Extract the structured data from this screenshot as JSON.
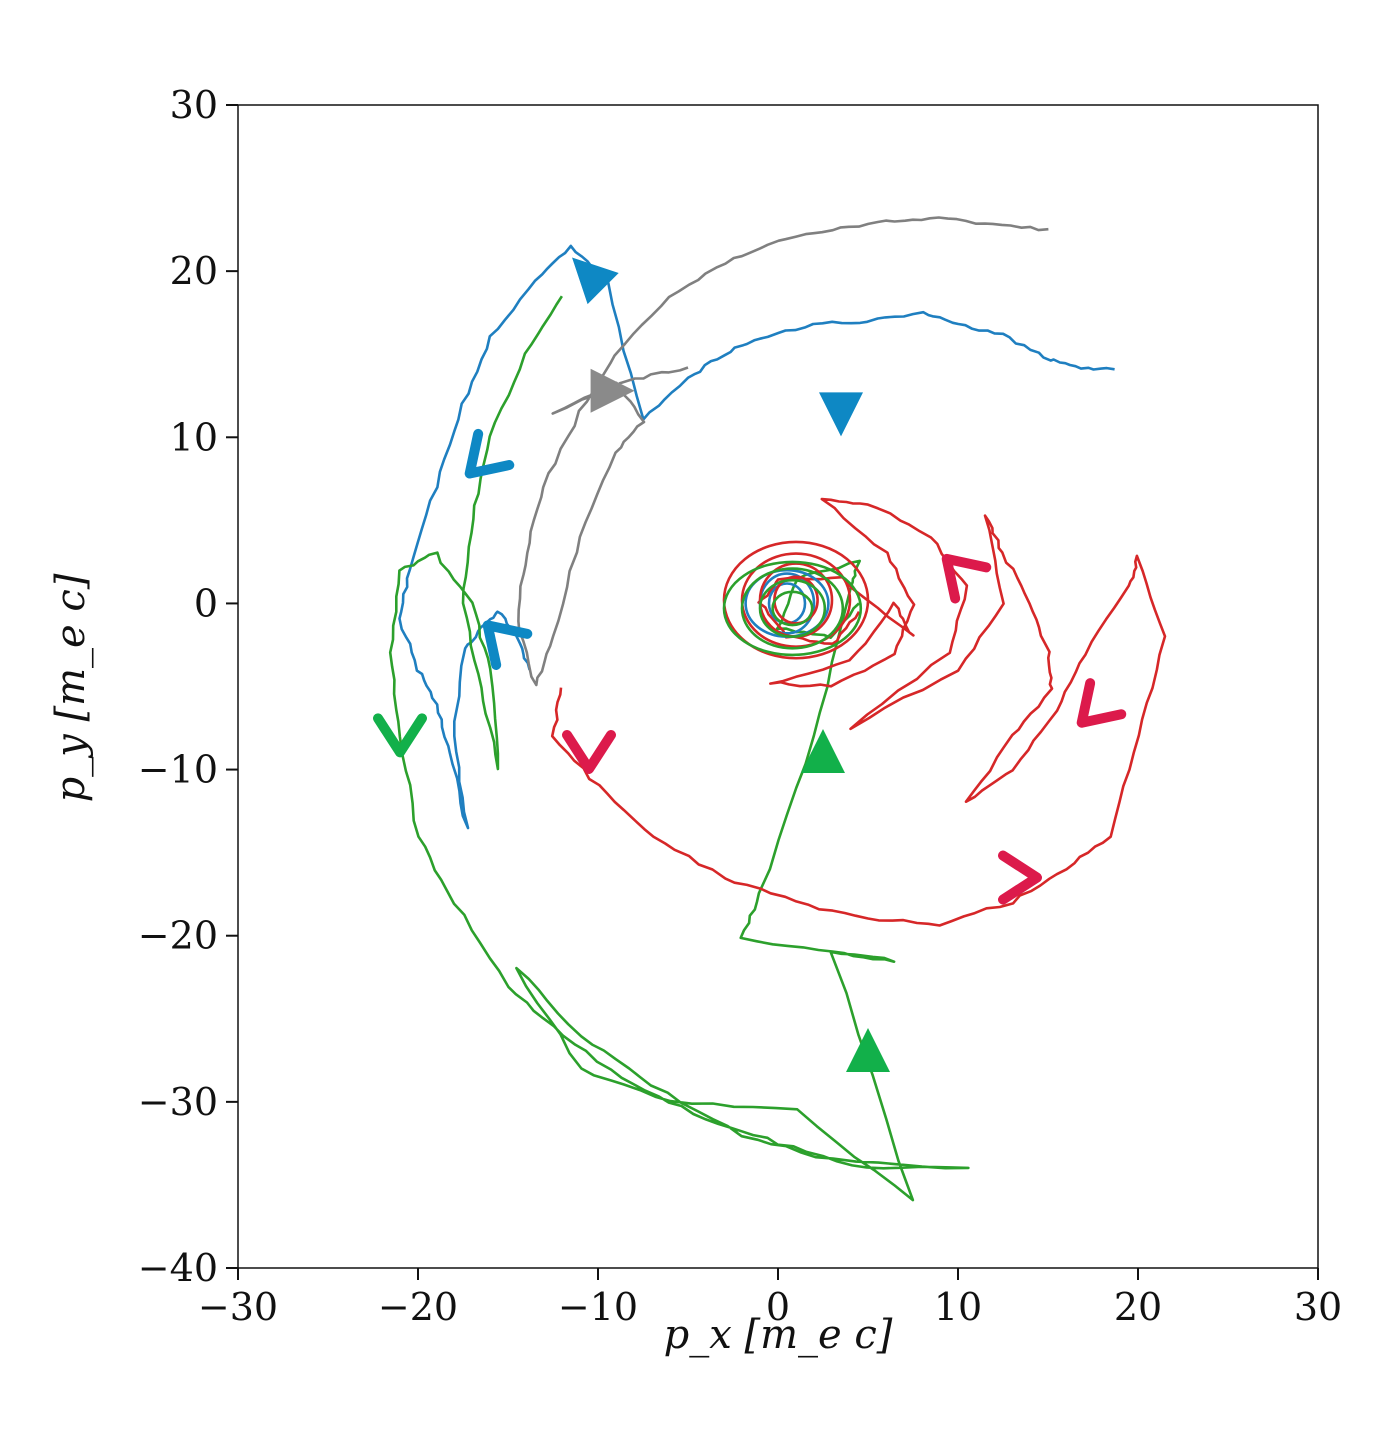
{
  "chart_data": {
    "type": "line",
    "title": "",
    "xlabel": "p_x [m_e c]",
    "ylabel": "p_y [m_e c]",
    "xlim": [
      -30,
      30
    ],
    "ylim": [
      -40,
      30
    ],
    "xticks": [
      -30,
      -20,
      -10,
      0,
      10,
      20,
      30
    ],
    "yticks": [
      -40,
      -30,
      -20,
      -10,
      0,
      10,
      20,
      30
    ],
    "xtick_labels": [
      "−30",
      "−20",
      "−10",
      "0",
      "10",
      "20",
      "30"
    ],
    "ytick_labels": [
      "−40",
      "−30",
      "−20",
      "−10",
      "0",
      "10",
      "20",
      "30"
    ],
    "grid": false,
    "legend": "none",
    "series": [
      {
        "color": "#1f7fc0",
        "points": [
          [
            18.7,
            14.1
          ],
          [
            16.5,
            14.2
          ],
          [
            14.8,
            14.8
          ],
          [
            12.5,
            16.2
          ],
          [
            10,
            16.8
          ],
          [
            8,
            17.5
          ],
          [
            5,
            17
          ],
          [
            2,
            16.8
          ],
          [
            -1,
            16
          ],
          [
            -3,
            15
          ],
          [
            -5,
            13.5
          ],
          [
            -7.5,
            11
          ],
          [
            -9.5,
            19.5
          ],
          [
            -11.5,
            21.5
          ],
          [
            -13.5,
            19.5
          ],
          [
            -16,
            16
          ],
          [
            -17.5,
            12
          ],
          [
            -19,
            7
          ],
          [
            -20.5,
            2
          ],
          [
            -21,
            -1
          ],
          [
            -20,
            -4
          ],
          [
            -19,
            -6
          ],
          [
            -18.2,
            -9
          ],
          [
            -17.3,
            -13.5
          ],
          [
            -18,
            -8
          ],
          [
            -17.5,
            -3
          ],
          [
            -16.5,
            -1.5
          ],
          [
            -15.5,
            -0.5
          ],
          [
            -14.5,
            -2
          ],
          [
            -13.8,
            -4
          ]
        ],
        "arrows": [
          [
            -10.5,
            19.8,
            "up-left"
          ],
          [
            3.5,
            11.5,
            "down"
          ],
          [
            -16.5,
            8.5,
            "down-left"
          ],
          [
            -15.5,
            -2,
            "up-left"
          ]
        ]
      },
      {
        "color": "#808080",
        "points": [
          [
            15,
            22.5
          ],
          [
            12,
            22.8
          ],
          [
            9,
            23.2
          ],
          [
            6,
            23
          ],
          [
            3,
            22.5
          ],
          [
            0,
            21.8
          ],
          [
            -3,
            20.5
          ],
          [
            -6,
            18.5
          ],
          [
            -9,
            15
          ],
          [
            -11,
            11.5
          ],
          [
            -13,
            7
          ],
          [
            -14,
            3
          ],
          [
            -14.5,
            -1
          ],
          [
            -13.5,
            -5
          ],
          [
            -12.5,
            -2
          ],
          [
            -11,
            4
          ],
          [
            -9,
            9
          ],
          [
            -7.5,
            11
          ],
          [
            -9,
            13.3
          ],
          [
            -12.5,
            11.5
          ],
          [
            -8,
            13.5
          ],
          [
            -5,
            14.2
          ]
        ],
        "arrows": [
          [
            -9.3,
            12.8,
            "right"
          ]
        ]
      },
      {
        "color": "#2ca02c",
        "points": [
          [
            -12,
            18.5
          ],
          [
            -14,
            15
          ],
          [
            -16,
            10
          ],
          [
            -17,
            5
          ],
          [
            -17.5,
            0
          ],
          [
            -16.5,
            -5
          ],
          [
            -15.5,
            -10
          ],
          [
            -16,
            -4
          ],
          [
            -17,
            0
          ],
          [
            -19,
            3
          ],
          [
            -21,
            2
          ],
          [
            -21.5,
            -3
          ],
          [
            -21,
            -8
          ],
          [
            -20,
            -14
          ],
          [
            -18,
            -18
          ],
          [
            -15,
            -23
          ],
          [
            -12,
            -26
          ],
          [
            -8,
            -29
          ],
          [
            -4,
            -31
          ],
          [
            0,
            -32.5
          ],
          [
            5,
            -34
          ],
          [
            10.5,
            -34
          ],
          [
            3,
            -33.5
          ],
          [
            -2,
            -32
          ],
          [
            -7,
            -29
          ],
          [
            -11,
            -26
          ],
          [
            -14.5,
            -22
          ],
          [
            -11,
            -28
          ],
          [
            -6,
            -30
          ],
          [
            1,
            -30.5
          ],
          [
            7.5,
            -36
          ],
          [
            3,
            -21
          ],
          [
            6.5,
            -21.5
          ],
          [
            3,
            -21
          ],
          [
            -2,
            -20.2
          ],
          [
            -1,
            -17.5
          ],
          [
            2,
            -8
          ],
          [
            4,
            1
          ],
          [
            4.5,
            2.5
          ],
          [
            1,
            1.5
          ],
          [
            0,
            -1.5
          ],
          [
            3,
            -2
          ],
          [
            4.5,
            0
          ]
        ],
        "arrows": [
          [
            -21,
            -8,
            "down"
          ],
          [
            2.5,
            -9,
            "up"
          ],
          [
            5,
            -27,
            "up"
          ]
        ]
      },
      {
        "color": "#d62728",
        "points": [
          [
            -12,
            -5
          ],
          [
            -12.5,
            -8
          ],
          [
            -10,
            -11
          ],
          [
            -7,
            -14
          ],
          [
            -3,
            -16.5
          ],
          [
            1,
            -18
          ],
          [
            5,
            -19
          ],
          [
            9,
            -19.3
          ],
          [
            13,
            -18
          ],
          [
            16,
            -16
          ],
          [
            18.5,
            -14
          ],
          [
            20,
            -8
          ],
          [
            21.5,
            -2
          ],
          [
            20,
            2.8
          ],
          [
            19.5,
            1
          ],
          [
            17,
            -3
          ],
          [
            15.5,
            -6.5
          ],
          [
            13,
            -10
          ],
          [
            10.5,
            -12
          ],
          [
            13,
            -8
          ],
          [
            15.2,
            -5.2
          ],
          [
            15,
            -3
          ],
          [
            14,
            0
          ],
          [
            12.5,
            3
          ],
          [
            11.5,
            5.3
          ],
          [
            12.5,
            0
          ],
          [
            10,
            -4
          ],
          [
            4,
            -7.5
          ],
          [
            9.5,
            -3
          ],
          [
            10.5,
            1
          ],
          [
            8.5,
            4
          ],
          [
            5,
            6
          ],
          [
            2.5,
            6.2
          ],
          [
            6,
            3
          ],
          [
            7.5,
            0
          ],
          [
            6.5,
            -3
          ],
          [
            3,
            -5
          ],
          [
            -0.5,
            -4.8
          ],
          [
            4,
            -3.5
          ],
          [
            6.5,
            0
          ],
          [
            7.5,
            -2
          ],
          [
            3.5,
            1.5
          ],
          [
            0,
            1.5
          ],
          [
            -1,
            0
          ],
          [
            0.5,
            -2
          ],
          [
            3,
            -2.5
          ],
          [
            4.5,
            -0.5
          ]
        ],
        "arrows": [
          [
            -10.5,
            -9,
            "down"
          ],
          [
            13.5,
            -16.5,
            "right"
          ],
          [
            17.5,
            -6.5,
            "down-left"
          ],
          [
            10,
            2,
            "up-left"
          ]
        ]
      }
    ],
    "loops": [
      {
        "color": "#1f7fc0",
        "cx": 0.5,
        "cy": 0,
        "radii": [
          [
            1.5,
            1.8
          ],
          [
            2.3,
            2.0
          ],
          [
            1.0,
            1.2
          ]
        ]
      },
      {
        "color": "#d62728",
        "cx": 1.0,
        "cy": 0.2,
        "radii": [
          [
            2.0,
            2.2
          ],
          [
            3.0,
            2.8
          ],
          [
            1.2,
            1.4
          ],
          [
            4.0,
            3.5
          ]
        ]
      },
      {
        "color": "#2ca02c",
        "cx": 0.8,
        "cy": -0.3,
        "radii": [
          [
            1.8,
            1.7
          ],
          [
            2.8,
            2.4
          ],
          [
            3.8,
            2.8
          ],
          [
            1.1,
            1.0
          ]
        ]
      }
    ]
  }
}
